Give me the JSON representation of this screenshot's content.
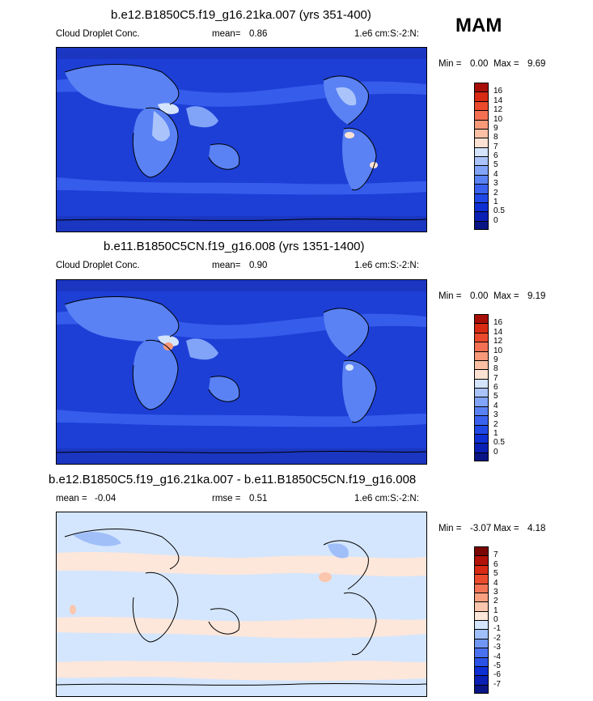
{
  "season": "MAM",
  "chart_data": [
    {
      "type": "heatmap",
      "title": "b.e12.B1850C5.f19_g16.21ka.007 (yrs 351-400)",
      "left_label": "Cloud Droplet Conc.",
      "mean_label": "mean=",
      "mean": "0.86",
      "units": "1.e6 cm:S:-2:N:",
      "min_label": "Min =",
      "min": "0.00",
      "max_label": "Max =",
      "max": "9.69",
      "colorbar_levels": [
        "0",
        "0.5",
        "1",
        "2",
        "3",
        "4",
        "5",
        "6",
        "7",
        "8",
        "9",
        "10",
        "12",
        "14",
        "16"
      ],
      "colorbar_colors": [
        "#0a1585",
        "#0a1fb4",
        "#0d2fd4",
        "#1f48e6",
        "#3a62ef",
        "#5a82f4",
        "#82a4f8",
        "#aac4fb",
        "#d4e4fd",
        "#fde2d4",
        "#fbc0a4",
        "#f8997a",
        "#f47052",
        "#ec4a2c",
        "#d92a14",
        "#a80f08"
      ],
      "background_color": "#1d3fd6"
    },
    {
      "type": "heatmap",
      "title": "b.e11.B1850C5CN.f19_g16.008 (yrs 1351-1400)",
      "left_label": "Cloud Droplet Conc.",
      "mean_label": "mean=",
      "mean": "0.90",
      "units": "1.e6 cm:S:-2:N:",
      "min_label": "Min =",
      "min": "0.00",
      "max_label": "Max =",
      "max": "9.19",
      "colorbar_levels": [
        "0",
        "0.5",
        "1",
        "2",
        "3",
        "4",
        "5",
        "6",
        "7",
        "8",
        "9",
        "10",
        "12",
        "14",
        "16"
      ],
      "colorbar_colors": [
        "#0a1585",
        "#0a1fb4",
        "#0d2fd4",
        "#1f48e6",
        "#3a62ef",
        "#5a82f4",
        "#82a4f8",
        "#aac4fb",
        "#d4e4fd",
        "#fde2d4",
        "#fbc0a4",
        "#f8997a",
        "#f47052",
        "#ec4a2c",
        "#d92a14",
        "#a80f08"
      ],
      "background_color": "#1d3fd6"
    },
    {
      "type": "heatmap",
      "title": "b.e12.B1850C5.f19_g16.21ka.007 - b.e11.B1850C5CN.f19_g16.008",
      "mean_label": "mean =",
      "mean": "-0.04",
      "rmse_label": "rmse =",
      "rmse": "0.51",
      "units": "1.e6 cm:S:-2:N:",
      "min_label": "Min =",
      "min": "-3.07",
      "max_label": "Max =",
      "max": "4.18",
      "colorbar_levels": [
        "-7",
        "-6",
        "-5",
        "-4",
        "-3",
        "-2",
        "-1",
        "0",
        "1",
        "2",
        "3",
        "4",
        "5",
        "6",
        "7"
      ],
      "colorbar_colors": [
        "#0a1585",
        "#0a1fb4",
        "#0d2fd4",
        "#2a52e8",
        "#4a72f0",
        "#7097f6",
        "#a0bff9",
        "#d4e6fd",
        "#fde6da",
        "#fbc6ae",
        "#f8a080",
        "#f47456",
        "#ec4c2e",
        "#d92a14",
        "#b31208",
        "#7a0604"
      ],
      "background_color": "#d4e6fd"
    }
  ]
}
